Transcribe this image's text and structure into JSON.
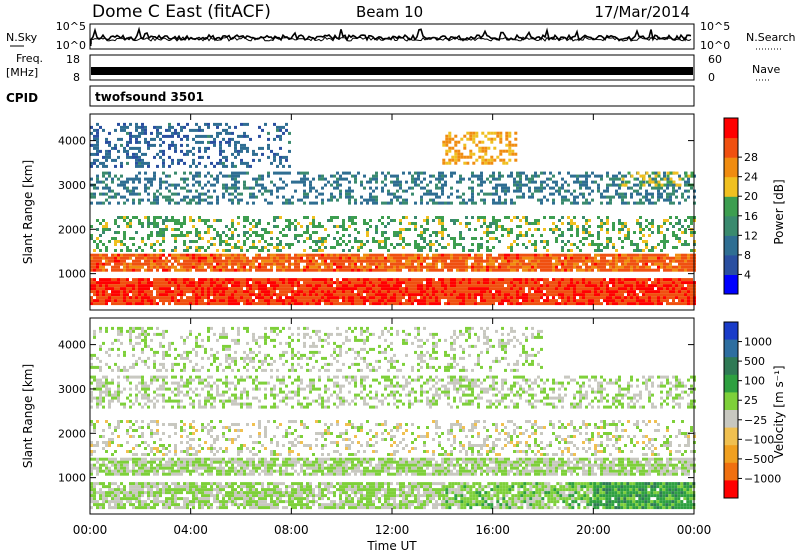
{
  "header": {
    "station": "Dome C East (fitACF)",
    "beam": "Beam 10",
    "date": "17/Mar/2014"
  },
  "top_panels": {
    "nsky_label": "N.Sky",
    "nsky_ticks": [
      "10^5",
      "10^0"
    ],
    "nsearch_label": "N.Search",
    "nsearch_ticks": [
      "10^5",
      "10^0"
    ],
    "freq_label": "Freq.",
    "freq_unit": "[MHz]",
    "freq_ticks": [
      "18",
      "8"
    ],
    "nave_label": "Nave",
    "nave_ticks": [
      "60",
      "0"
    ],
    "cpid_label": "CPID",
    "cpid_value": "twofsound 3501"
  },
  "colors": {
    "power": [
      "#0000ff",
      "#2a4fa0",
      "#2f6e92",
      "#3a8a6e",
      "#3d9e50",
      "#f0c020",
      "#f08c10",
      "#f05010",
      "#ff0000"
    ],
    "velocity": [
      "#1a3cc8",
      "#2e6ea0",
      "#2f7a55",
      "#2ea040",
      "#7ed03a",
      "#c8c8c0",
      "#f0c050",
      "#f0a020",
      "#f07010",
      "#ff0000"
    ]
  },
  "chart_data": [
    {
      "type": "heatmap",
      "ylabel": "Slant Range [km]",
      "xlabel": "",
      "ylim": [
        180,
        4600
      ],
      "xlim": [
        0,
        24
      ],
      "yticks": [
        "1000",
        "2000",
        "3000",
        "4000"
      ],
      "colorbar": {
        "label": "Power [dB]",
        "range": [
          0,
          32
        ],
        "ticks": [
          "4",
          "8",
          "12",
          "16",
          "20",
          "24",
          "28"
        ]
      },
      "bands": [
        {
          "range": [
            300,
            900
          ],
          "x": [
            0,
            24
          ],
          "value": 28,
          "density": 0.95
        },
        {
          "range": [
            1050,
            1450
          ],
          "x": [
            0,
            24
          ],
          "value": 26,
          "density": 0.9
        },
        {
          "range": [
            1500,
            2300
          ],
          "x": [
            0,
            24
          ],
          "value": 16,
          "density": 0.35
        },
        {
          "range": [
            2600,
            3300
          ],
          "x": [
            0,
            24
          ],
          "value": 10,
          "density": 0.4
        },
        {
          "range": [
            3400,
            4400
          ],
          "x": [
            0,
            8
          ],
          "value": 8,
          "density": 0.35
        },
        {
          "range": [
            3500,
            4200
          ],
          "x": [
            14,
            17
          ],
          "value": 22,
          "density": 0.5
        },
        {
          "range": [
            3000,
            3300
          ],
          "x": [
            21,
            24
          ],
          "value": 18,
          "density": 0.45
        }
      ]
    },
    {
      "type": "heatmap",
      "ylabel": "Slant Range [km]",
      "xlabel": "Time UT",
      "ylim": [
        180,
        4600
      ],
      "xlim": [
        0,
        24
      ],
      "yticks": [
        "1000",
        "2000",
        "3000",
        "4000"
      ],
      "xticks": [
        "00:00",
        "04:00",
        "08:00",
        "12:00",
        "16:00",
        "20:00",
        "00:00"
      ],
      "colorbar": {
        "label": "Velocity [m s⁻¹]",
        "range": [
          -1000,
          1000
        ],
        "ticks": [
          "1000",
          "500",
          "100",
          "25",
          "−25",
          "−100",
          "−500",
          "−1000"
        ]
      },
      "bands": [
        {
          "range": [
            300,
            900
          ],
          "x": [
            0,
            14
          ],
          "value": 20,
          "density": 0.8
        },
        {
          "range": [
            300,
            900
          ],
          "x": [
            14,
            20
          ],
          "value": 80,
          "density": 0.85
        },
        {
          "range": [
            300,
            900
          ],
          "x": [
            20,
            24
          ],
          "value": 300,
          "density": 0.95
        },
        {
          "range": [
            1050,
            1450
          ],
          "x": [
            0,
            24
          ],
          "value": 0,
          "density": 0.85
        },
        {
          "range": [
            1500,
            2300
          ],
          "x": [
            0,
            24
          ],
          "value": -80,
          "density": 0.3
        },
        {
          "range": [
            2600,
            3300
          ],
          "x": [
            0,
            24
          ],
          "value": 0,
          "density": 0.45
        },
        {
          "range": [
            3400,
            4400
          ],
          "x": [
            0,
            18
          ],
          "value": -20,
          "density": 0.3
        }
      ]
    }
  ]
}
